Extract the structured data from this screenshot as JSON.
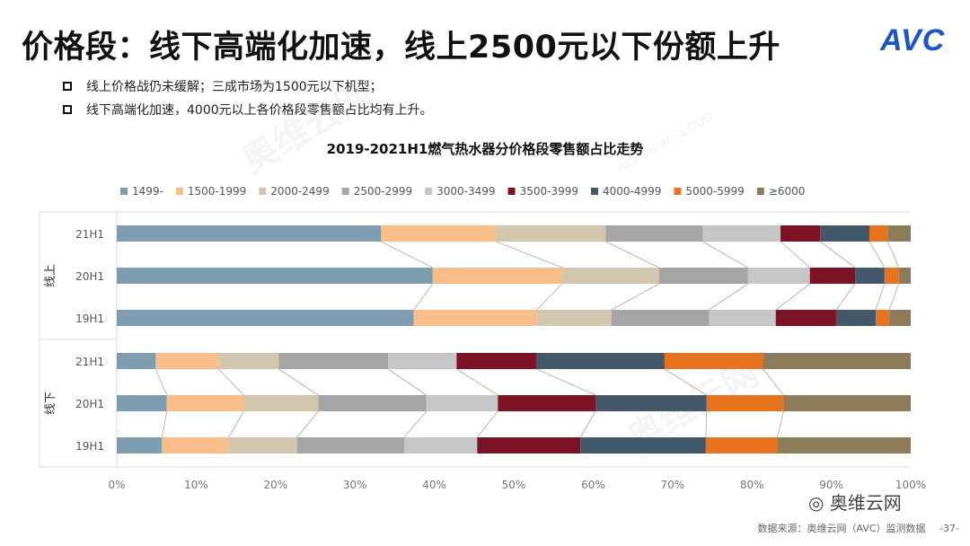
{
  "slide": {
    "title": "价格段：线下高端化加速，线上2500元以下份额上升",
    "logo": "AVC",
    "bullets": [
      "线上价格战仍未缓解；三成市场为1500元以下机型；",
      "线下高端化加速，4000元以上各价格段零售额占比均有上升。"
    ],
    "source": "数据来源：奥维云网（AVC）监测数据",
    "page": "-37-",
    "wechat": "奥维云网",
    "watermark": "奥维云网",
    "watermark_sub": "ALL VIEW CLOUD"
  },
  "chart_data": {
    "type": "bar",
    "orientation": "horizontal-stacked-100",
    "title": "2019-2021H1燃气热水器分价格段零售额占比走势",
    "series_names": [
      "1499-",
      "1500-1999",
      "2000-2499",
      "2500-2999",
      "3000-3499",
      "3500-3999",
      "4000-4999",
      "5000-5999",
      "≥6000"
    ],
    "colors": [
      "#7f9db1",
      "#f9bd8a",
      "#d2c7ae",
      "#a5a5a5",
      "#c6c6c6",
      "#7c1325",
      "#44586a",
      "#e8731e",
      "#8c7c5a"
    ],
    "groups": [
      {
        "name": "线上",
        "rows": [
          {
            "label": "21H1",
            "values": [
              33.3,
              14.5,
              13.8,
              12.2,
              9.8,
              5.0,
              6.2,
              2.3,
              2.9
            ]
          },
          {
            "label": "20H1",
            "values": [
              39.8,
              16.3,
              12.2,
              11.2,
              7.8,
              5.7,
              3.7,
              1.8,
              1.5
            ]
          },
          {
            "label": "19H1",
            "values": [
              37.4,
              15.5,
              9.4,
              12.3,
              8.4,
              7.6,
              5.0,
              1.7,
              2.7
            ]
          }
        ]
      },
      {
        "name": "线下",
        "rows": [
          {
            "label": "21H1",
            "values": [
              4.9,
              7.9,
              7.6,
              13.8,
              8.6,
              10.1,
              16.1,
              12.4,
              18.6
            ]
          },
          {
            "label": "20H1",
            "values": [
              6.3,
              9.7,
              9.4,
              13.6,
              9.0,
              12.3,
              14.0,
              9.7,
              16.0
            ]
          },
          {
            "label": "19H1",
            "values": [
              5.7,
              8.4,
              8.6,
              13.5,
              9.2,
              13.0,
              15.8,
              9.0,
              16.8
            ]
          }
        ]
      }
    ],
    "xlim": [
      0,
      100
    ],
    "xticks": [
      "0%",
      "10%",
      "20%",
      "30%",
      "40%",
      "50%",
      "60%",
      "70%",
      "80%",
      "90%",
      "100%"
    ],
    "legend_position": "top"
  }
}
